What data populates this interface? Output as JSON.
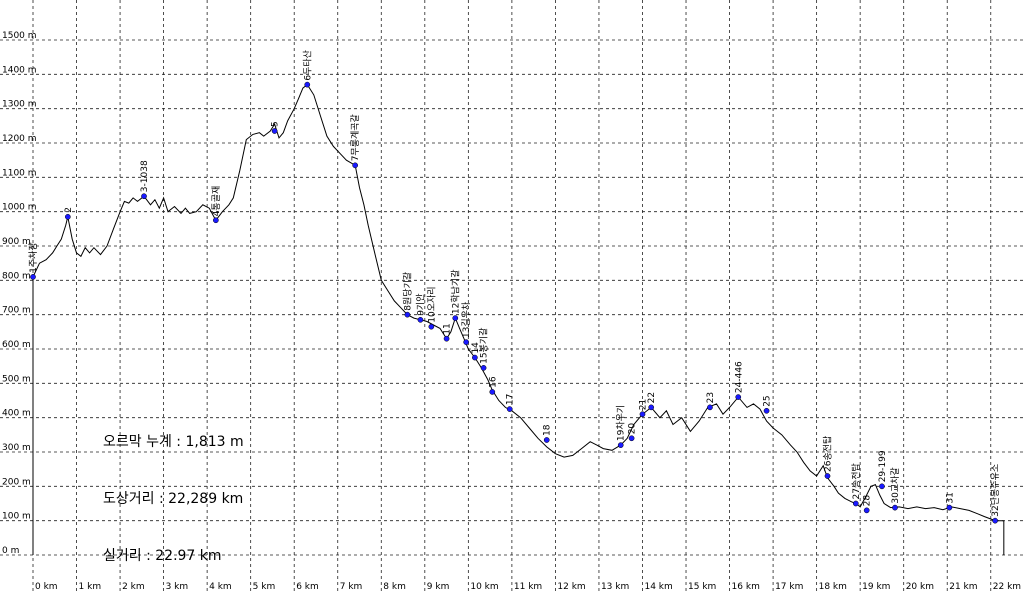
{
  "stats": {
    "ascent": "오르막 누계 : 1,813 m",
    "map_distance": "도상거리 : 22,289 km",
    "real_distance": "실거리 : 22.97 km"
  },
  "chart_data": {
    "type": "line",
    "title": "",
    "xlabel": "",
    "ylabel": "",
    "xlim": [
      0,
      22.35
    ],
    "ylim": [
      0,
      1500
    ],
    "y_ticks": [
      0,
      100,
      200,
      300,
      400,
      500,
      600,
      700,
      800,
      900,
      1000,
      1100,
      1200,
      1300,
      1400,
      1500
    ],
    "y_tick_labels": [
      "0 m",
      "100 m",
      "200 m",
      "300 m",
      "400 m",
      "500 m",
      "600 m",
      "700 m",
      "800 m",
      "900 m",
      "1000 m",
      "1100 m",
      "1200 m",
      "1300 m",
      "1400 m",
      "1500 m"
    ],
    "x_ticks": [
      0,
      1,
      2,
      3,
      4,
      5,
      6,
      7,
      8,
      9,
      10,
      11,
      12,
      13,
      14,
      15,
      16,
      17,
      18,
      19,
      20,
      21,
      22
    ],
    "x_tick_labels": [
      "0 km",
      "1 km",
      "2 km",
      "3 km",
      "4 km",
      "5 km",
      "6 km",
      "7 km",
      "8 km",
      "9 km",
      "10 km",
      "11 km",
      "12 km",
      "13 km",
      "14 km",
      "15 km",
      "16 km",
      "17 km",
      "18 km",
      "19 km",
      "20 km",
      "21 km",
      "22 km"
    ],
    "grid": true,
    "line_color": "#000000",
    "marker_color": "#1a1aff",
    "profile": [
      [
        0.0,
        810
      ],
      [
        0.15,
        850
      ],
      [
        0.3,
        860
      ],
      [
        0.45,
        880
      ],
      [
        0.55,
        900
      ],
      [
        0.65,
        920
      ],
      [
        0.75,
        960
      ],
      [
        0.8,
        985
      ],
      [
        0.9,
        920
      ],
      [
        1.0,
        880
      ],
      [
        1.1,
        870
      ],
      [
        1.2,
        895
      ],
      [
        1.3,
        880
      ],
      [
        1.4,
        895
      ],
      [
        1.55,
        875
      ],
      [
        1.7,
        900
      ],
      [
        1.85,
        950
      ],
      [
        2.0,
        1000
      ],
      [
        2.1,
        1030
      ],
      [
        2.2,
        1025
      ],
      [
        2.3,
        1040
      ],
      [
        2.4,
        1030
      ],
      [
        2.55,
        1045
      ],
      [
        2.7,
        1020
      ],
      [
        2.8,
        1035
      ],
      [
        2.9,
        1010
      ],
      [
        3.0,
        1040
      ],
      [
        3.1,
        1000
      ],
      [
        3.25,
        1015
      ],
      [
        3.4,
        995
      ],
      [
        3.5,
        1010
      ],
      [
        3.6,
        995
      ],
      [
        3.75,
        1000
      ],
      [
        3.9,
        1020
      ],
      [
        4.05,
        1010
      ],
      [
        4.2,
        975
      ],
      [
        4.35,
        1000
      ],
      [
        4.5,
        1020
      ],
      [
        4.6,
        1040
      ],
      [
        4.75,
        1120
      ],
      [
        4.9,
        1210
      ],
      [
        5.05,
        1225
      ],
      [
        5.2,
        1230
      ],
      [
        5.3,
        1220
      ],
      [
        5.45,
        1235
      ],
      [
        5.55,
        1255
      ],
      [
        5.65,
        1215
      ],
      [
        5.75,
        1230
      ],
      [
        5.85,
        1265
      ],
      [
        6.0,
        1300
      ],
      [
        6.1,
        1330
      ],
      [
        6.2,
        1360
      ],
      [
        6.3,
        1370
      ],
      [
        6.45,
        1340
      ],
      [
        6.6,
        1280
      ],
      [
        6.75,
        1220
      ],
      [
        6.9,
        1190
      ],
      [
        7.05,
        1170
      ],
      [
        7.2,
        1150
      ],
      [
        7.4,
        1135
      ],
      [
        7.5,
        1070
      ],
      [
        7.6,
        1020
      ],
      [
        7.7,
        960
      ],
      [
        7.85,
        880
      ],
      [
        8.0,
        800
      ],
      [
        8.15,
        770
      ],
      [
        8.3,
        740
      ],
      [
        8.45,
        720
      ],
      [
        8.6,
        700
      ],
      [
        8.75,
        690
      ],
      [
        8.9,
        685
      ],
      [
        9.05,
        680
      ],
      [
        9.2,
        670
      ],
      [
        9.35,
        660
      ],
      [
        9.5,
        630
      ],
      [
        9.6,
        650
      ],
      [
        9.7,
        690
      ],
      [
        9.8,
        660
      ],
      [
        9.9,
        630
      ],
      [
        10.0,
        600
      ],
      [
        10.15,
        575
      ],
      [
        10.3,
        545
      ],
      [
        10.45,
        510
      ],
      [
        10.55,
        480
      ],
      [
        10.7,
        450
      ],
      [
        10.85,
        430
      ],
      [
        11.0,
        420
      ],
      [
        11.2,
        400
      ],
      [
        11.4,
        370
      ],
      [
        11.6,
        340
      ],
      [
        11.8,
        315
      ],
      [
        12.0,
        295
      ],
      [
        12.2,
        285
      ],
      [
        12.4,
        290
      ],
      [
        12.6,
        310
      ],
      [
        12.8,
        330
      ],
      [
        12.95,
        320
      ],
      [
        13.1,
        310
      ],
      [
        13.3,
        305
      ],
      [
        13.5,
        320
      ],
      [
        13.65,
        340
      ],
      [
        13.8,
        380
      ],
      [
        14.0,
        410
      ],
      [
        14.2,
        430
      ],
      [
        14.4,
        400
      ],
      [
        14.55,
        420
      ],
      [
        14.7,
        380
      ],
      [
        14.9,
        400
      ],
      [
        15.1,
        360
      ],
      [
        15.3,
        390
      ],
      [
        15.5,
        430
      ],
      [
        15.7,
        440
      ],
      [
        15.85,
        410
      ],
      [
        16.0,
        430
      ],
      [
        16.2,
        460
      ],
      [
        16.4,
        430
      ],
      [
        16.55,
        440
      ],
      [
        16.7,
        425
      ],
      [
        16.85,
        390
      ],
      [
        17.0,
        370
      ],
      [
        17.2,
        350
      ],
      [
        17.4,
        320
      ],
      [
        17.55,
        300
      ],
      [
        17.7,
        270
      ],
      [
        17.85,
        245
      ],
      [
        18.0,
        230
      ],
      [
        18.15,
        260
      ],
      [
        18.25,
        225
      ],
      [
        18.4,
        200
      ],
      [
        18.5,
        180
      ],
      [
        18.65,
        165
      ],
      [
        18.8,
        155
      ],
      [
        18.9,
        150
      ],
      [
        19.0,
        140
      ],
      [
        19.15,
        175
      ],
      [
        19.25,
        200
      ],
      [
        19.35,
        205
      ],
      [
        19.45,
        175
      ],
      [
        19.55,
        150
      ],
      [
        19.7,
        138
      ],
      [
        19.9,
        140
      ],
      [
        20.1,
        135
      ],
      [
        20.3,
        140
      ],
      [
        20.5,
        135
      ],
      [
        20.7,
        138
      ],
      [
        20.9,
        132
      ],
      [
        21.1,
        140
      ],
      [
        21.3,
        135
      ],
      [
        21.5,
        130
      ],
      [
        21.7,
        120
      ],
      [
        21.85,
        112
      ],
      [
        22.0,
        105
      ],
      [
        22.1,
        100
      ],
      [
        22.3,
        100
      ]
    ],
    "waypoints": [
      {
        "label": "1주차장",
        "x": 0.0,
        "y": 810
      },
      {
        "label": "2",
        "x": 0.8,
        "y": 985
      },
      {
        "label": "3-1038",
        "x": 2.55,
        "y": 1045
      },
      {
        "label": "4통골재",
        "x": 4.2,
        "y": 975
      },
      {
        "label": "5",
        "x": 5.55,
        "y": 1235
      },
      {
        "label": "6두타산",
        "x": 6.3,
        "y": 1370
      },
      {
        "label": "7무릉계곡갈",
        "x": 7.4,
        "y": 1135
      },
      {
        "label": "8원당기갈",
        "x": 8.6,
        "y": 700
      },
      {
        "label": "9기안",
        "x": 8.9,
        "y": 685
      },
      {
        "label": "10오자리",
        "x": 9.15,
        "y": 665
      },
      {
        "label": "11",
        "x": 9.5,
        "y": 630
      },
      {
        "label": "12학남기갈",
        "x": 9.7,
        "y": 690
      },
      {
        "label": "13길우차",
        "x": 9.95,
        "y": 620
      },
      {
        "label": "14",
        "x": 10.15,
        "y": 575
      },
      {
        "label": "15봉기갈",
        "x": 10.35,
        "y": 545
      },
      {
        "label": "16",
        "x": 10.55,
        "y": 475
      },
      {
        "label": "17",
        "x": 10.95,
        "y": 425
      },
      {
        "label": "18",
        "x": 11.8,
        "y": 335
      },
      {
        "label": "19차우기",
        "x": 13.5,
        "y": 320
      },
      {
        "label": "20",
        "x": 13.75,
        "y": 340
      },
      {
        "label": "21",
        "x": 14.0,
        "y": 410
      },
      {
        "label": "22",
        "x": 14.2,
        "y": 430
      },
      {
        "label": "23",
        "x": 15.55,
        "y": 430
      },
      {
        "label": "24-446",
        "x": 16.2,
        "y": 460
      },
      {
        "label": "25",
        "x": 16.85,
        "y": 420
      },
      {
        "label": "26송전탑",
        "x": 18.25,
        "y": 230
      },
      {
        "label": "27송전탑",
        "x": 18.9,
        "y": 150
      },
      {
        "label": "28",
        "x": 19.15,
        "y": 130
      },
      {
        "label": "29-199",
        "x": 19.5,
        "y": 200
      },
      {
        "label": "30교차갈",
        "x": 19.8,
        "y": 138
      },
      {
        "label": "31",
        "x": 21.05,
        "y": 138
      },
      {
        "label": "32단봉주유소",
        "x": 22.1,
        "y": 100
      }
    ]
  }
}
